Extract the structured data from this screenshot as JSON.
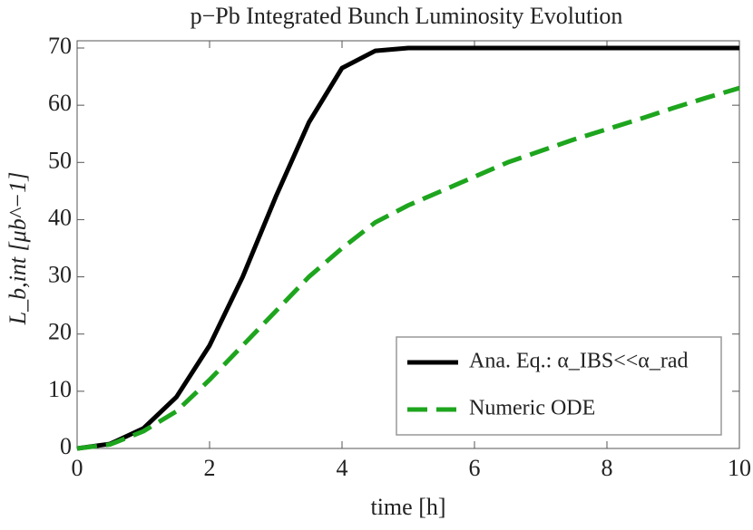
{
  "chart_data": {
    "type": "line",
    "title": "p−Pb Integrated Bunch Luminosity Evolution",
    "xlabel": "time [h]",
    "ylabel": "L_b,int [μb^−1]",
    "x": [
      0,
      0.5,
      1,
      1.5,
      2,
      2.5,
      3,
      3.5,
      4,
      4.5,
      5,
      5.5,
      6,
      6.5,
      7,
      7.5,
      8,
      8.5,
      9,
      9.5,
      10
    ],
    "series": [
      {
        "name": "Ana. Eq.: α_IBS<<α_rad",
        "color": "#000000",
        "dash": false,
        "values": [
          0,
          0.8,
          3.5,
          9,
          18,
          30,
          44,
          57,
          66.5,
          69.5,
          70,
          70,
          70,
          70,
          70,
          70,
          70,
          70,
          70,
          70,
          70
        ]
      },
      {
        "name": "Numeric ODE",
        "color": "#1ea51e",
        "dash": true,
        "values": [
          0,
          0.7,
          3,
          6.5,
          12,
          18,
          24,
          30,
          35,
          39.5,
          42.5,
          45,
          47.5,
          50,
          52,
          54,
          55.8,
          57.6,
          59.5,
          61.3,
          63
        ]
      }
    ],
    "xlim": [
      0,
      10
    ],
    "xticks": [
      0,
      2,
      4,
      6,
      8,
      10
    ],
    "ylim": [
      0,
      70
    ],
    "yticks": [
      0,
      10,
      20,
      30,
      40,
      50,
      60,
      70
    ],
    "legend": "lower right"
  }
}
